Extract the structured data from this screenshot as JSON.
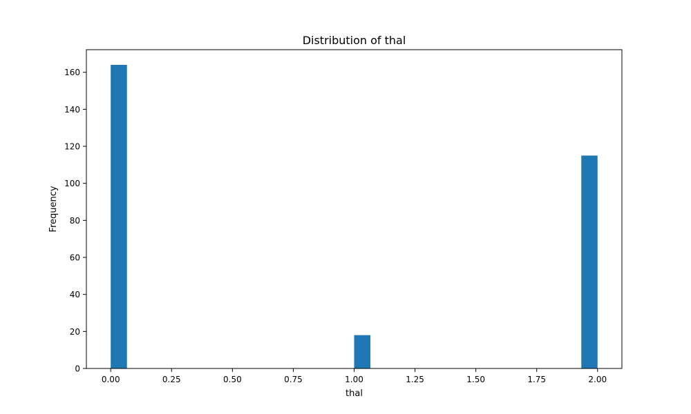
{
  "chart_data": {
    "type": "bar",
    "title": "Distribution of thal",
    "xlabel": "thal",
    "ylabel": "Frequency",
    "xlim": [
      -0.1,
      2.1
    ],
    "ylim": [
      0,
      172.2
    ],
    "x_ticks": [
      "0.00",
      "0.25",
      "0.50",
      "0.75",
      "1.00",
      "1.25",
      "1.50",
      "1.75",
      "2.00"
    ],
    "y_ticks": [
      "0",
      "20",
      "40",
      "60",
      "80",
      "100",
      "120",
      "140",
      "160"
    ],
    "bins": [
      {
        "start": 0.0,
        "end": 0.0667,
        "value": 164
      },
      {
        "start": 1.0,
        "end": 1.0667,
        "value": 18
      },
      {
        "start": 1.9333,
        "end": 2.0,
        "value": 115
      }
    ],
    "bar_color": "#1f77b4",
    "grid": false,
    "legend": "none"
  }
}
